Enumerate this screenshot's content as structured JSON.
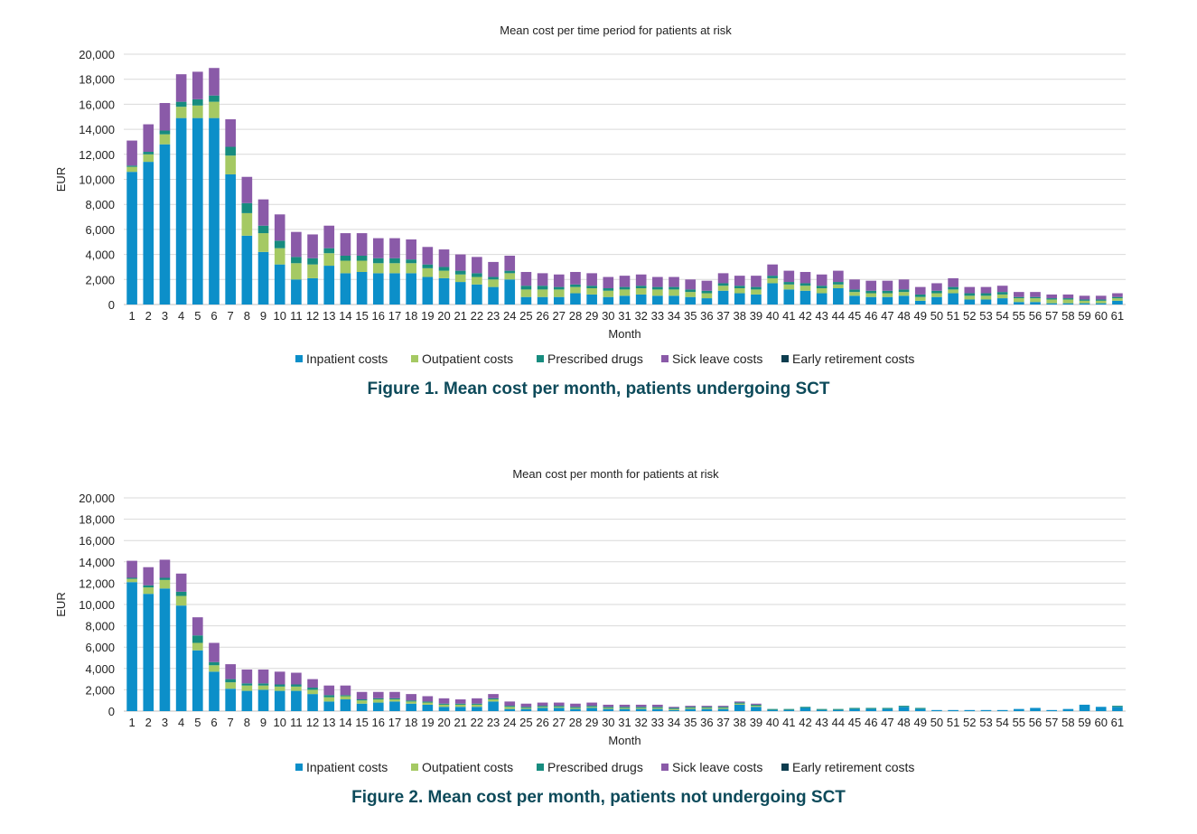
{
  "chart_data": [
    {
      "type": "bar",
      "stacked": true,
      "title": "Mean cost per time period for patients at risk",
      "xlabel": "Month",
      "ylabel": "EUR",
      "ylim": [
        0,
        20000
      ],
      "yticks": [
        0,
        2000,
        4000,
        6000,
        8000,
        10000,
        12000,
        14000,
        16000,
        18000,
        20000
      ],
      "ytick_labels": [
        "0",
        "2,000",
        "4,000",
        "6,000",
        "8,000",
        "10,000",
        "12,000",
        "14,000",
        "16,000",
        "18,000",
        "20,000"
      ],
      "grid": true,
      "legend": "bottom",
      "categories": [
        "1",
        "2",
        "3",
        "4",
        "5",
        "6",
        "7",
        "8",
        "9",
        "10",
        "11",
        "12",
        "13",
        "14",
        "15",
        "16",
        "17",
        "18",
        "19",
        "20",
        "21",
        "22",
        "23",
        "24",
        "25",
        "26",
        "27",
        "28",
        "29",
        "30",
        "31",
        "32",
        "33",
        "34",
        "35",
        "36",
        "37",
        "38",
        "39",
        "40",
        "41",
        "42",
        "43",
        "44",
        "45",
        "46",
        "47",
        "48",
        "49",
        "50",
        "51",
        "52",
        "53",
        "54",
        "55",
        "56",
        "57",
        "58",
        "59",
        "60",
        "61"
      ],
      "series": [
        {
          "name": "Inpatient costs",
          "color": "#0c8fc9",
          "values": [
            10600,
            11400,
            12800,
            14900,
            14900,
            14900,
            10400,
            5500,
            4200,
            3200,
            2000,
            2100,
            3100,
            2500,
            2600,
            2500,
            2500,
            2500,
            2200,
            2100,
            1800,
            1600,
            1400,
            2000,
            600,
            600,
            600,
            900,
            800,
            600,
            700,
            800,
            700,
            700,
            600,
            500,
            1100,
            900,
            800,
            1700,
            1200,
            1100,
            900,
            1300,
            700,
            600,
            600,
            700,
            300,
            600,
            900,
            400,
            400,
            500,
            200,
            200,
            100,
            100,
            100,
            100,
            300
          ]
        },
        {
          "name": "Outpatient costs",
          "color": "#a5c963",
          "values": [
            400,
            600,
            800,
            900,
            1000,
            1300,
            1500,
            1800,
            1500,
            1300,
            1300,
            1100,
            1000,
            1000,
            900,
            800,
            800,
            800,
            700,
            600,
            600,
            600,
            600,
            500,
            600,
            600,
            600,
            500,
            500,
            500,
            500,
            500,
            500,
            500,
            400,
            400,
            400,
            400,
            400,
            400,
            400,
            400,
            400,
            300,
            300,
            300,
            300,
            300,
            300,
            300,
            300,
            300,
            300,
            300,
            300,
            300,
            300,
            300,
            200,
            200,
            200
          ]
        },
        {
          "name": "Prescribed drugs",
          "color": "#178c7f",
          "values": [
            100,
            200,
            300,
            400,
            500,
            500,
            700,
            800,
            600,
            600,
            500,
            500,
            400,
            400,
            400,
            400,
            400,
            300,
            300,
            300,
            300,
            300,
            200,
            200,
            300,
            300,
            200,
            200,
            200,
            200,
            200,
            200,
            200,
            200,
            200,
            200,
            200,
            200,
            200,
            200,
            200,
            200,
            200,
            200,
            200,
            200,
            200,
            200,
            200,
            200,
            200,
            200,
            200,
            200,
            100,
            100,
            100,
            100,
            100,
            100,
            100
          ]
        },
        {
          "name": "Sick leave costs",
          "color": "#8a5aa8",
          "values": [
            2000,
            2200,
            2200,
            2200,
            2200,
            2200,
            2200,
            2100,
            2100,
            2100,
            2000,
            1900,
            1800,
            1800,
            1800,
            1600,
            1600,
            1600,
            1400,
            1400,
            1300,
            1300,
            1200,
            1200,
            1100,
            1000,
            1000,
            1000,
            1000,
            900,
            900,
            900,
            800,
            800,
            800,
            800,
            800,
            800,
            900,
            900,
            900,
            900,
            900,
            900,
            800,
            800,
            800,
            800,
            600,
            600,
            700,
            500,
            500,
            500,
            400,
            400,
            300,
            300,
            300,
            300,
            300
          ]
        },
        {
          "name": "Early retirement costs",
          "color": "#0d3d4f",
          "values": [
            0,
            0,
            0,
            0,
            0,
            0,
            0,
            0,
            0,
            0,
            0,
            0,
            0,
            0,
            0,
            0,
            0,
            0,
            0,
            0,
            0,
            0,
            0,
            0,
            0,
            0,
            0,
            0,
            0,
            0,
            0,
            0,
            0,
            0,
            0,
            0,
            0,
            0,
            0,
            0,
            0,
            0,
            0,
            0,
            0,
            0,
            0,
            0,
            0,
            0,
            0,
            0,
            0,
            0,
            0,
            0,
            0,
            0,
            0,
            0,
            0
          ]
        }
      ]
    },
    {
      "type": "bar",
      "stacked": true,
      "title": "Mean cost per month for patients at risk",
      "xlabel": "Month",
      "ylabel": "EUR",
      "ylim": [
        0,
        20000
      ],
      "yticks": [
        0,
        2000,
        4000,
        6000,
        8000,
        10000,
        12000,
        14000,
        16000,
        18000,
        20000
      ],
      "ytick_labels": [
        "0",
        "2,000",
        "4,000",
        "6,000",
        "8,000",
        "10,000",
        "12,000",
        "14,000",
        "16,000",
        "18,000",
        "20,000"
      ],
      "grid": true,
      "legend": "bottom",
      "categories": [
        "1",
        "2",
        "3",
        "4",
        "5",
        "6",
        "7",
        "8",
        "9",
        "10",
        "11",
        "12",
        "13",
        "14",
        "15",
        "16",
        "17",
        "18",
        "19",
        "20",
        "21",
        "22",
        "23",
        "24",
        "25",
        "26",
        "27",
        "28",
        "29",
        "30",
        "31",
        "32",
        "33",
        "34",
        "35",
        "36",
        "37",
        "38",
        "39",
        "40",
        "41",
        "42",
        "43",
        "44",
        "45",
        "46",
        "47",
        "48",
        "49",
        "50",
        "51",
        "52",
        "53",
        "54",
        "55",
        "56",
        "57",
        "58",
        "59",
        "60",
        "61"
      ],
      "series": [
        {
          "name": "Inpatient costs",
          "color": "#0c8fc9",
          "values": [
            12100,
            11000,
            11500,
            9900,
            5700,
            3700,
            2100,
            1900,
            2000,
            1900,
            1900,
            1600,
            900,
            1100,
            700,
            800,
            900,
            700,
            600,
            400,
            400,
            400,
            900,
            200,
            200,
            300,
            300,
            200,
            300,
            200,
            200,
            200,
            200,
            100,
            200,
            200,
            200,
            600,
            400,
            100,
            100,
            300,
            100,
            100,
            200,
            200,
            200,
            400,
            200,
            100,
            100,
            100,
            100,
            100,
            200,
            300,
            100,
            200,
            600,
            400,
            400
          ]
        },
        {
          "name": "Outpatient costs",
          "color": "#a5c963",
          "values": [
            300,
            600,
            800,
            900,
            700,
            600,
            600,
            500,
            400,
            400,
            400,
            400,
            400,
            300,
            300,
            300,
            200,
            200,
            200,
            200,
            200,
            200,
            200,
            200,
            100,
            100,
            100,
            100,
            100,
            100,
            100,
            100,
            100,
            100,
            100,
            100,
            100,
            100,
            100,
            0,
            0,
            0,
            0,
            0,
            0,
            0,
            0,
            0,
            0,
            0,
            0,
            0,
            0,
            0,
            0,
            0,
            0,
            0,
            0,
            0,
            0
          ]
        },
        {
          "name": "Prescribed drugs",
          "color": "#178c7f",
          "values": [
            100,
            200,
            200,
            400,
            700,
            300,
            300,
            200,
            200,
            200,
            200,
            200,
            200,
            100,
            100,
            100,
            100,
            100,
            100,
            100,
            100,
            100,
            100,
            100,
            100,
            100,
            100,
            100,
            100,
            100,
            100,
            100,
            100,
            100,
            100,
            100,
            100,
            100,
            100,
            100,
            100,
            100,
            100,
            100,
            100,
            100,
            100,
            100,
            100,
            0,
            0,
            0,
            0,
            0,
            0,
            0,
            0,
            0,
            0,
            0,
            100
          ]
        },
        {
          "name": "Sick leave costs",
          "color": "#8a5aa8",
          "values": [
            1600,
            1700,
            1700,
            1700,
            1700,
            1800,
            1400,
            1300,
            1300,
            1200,
            1100,
            800,
            900,
            900,
            700,
            600,
            600,
            600,
            500,
            500,
            400,
            500,
            400,
            400,
            300,
            300,
            300,
            300,
            300,
            200,
            200,
            200,
            200,
            100,
            100,
            100,
            100,
            100,
            100,
            0,
            0,
            0,
            0,
            0,
            0,
            0,
            0,
            0,
            0,
            0,
            0,
            0,
            0,
            0,
            0,
            0,
            0,
            0,
            0,
            0,
            0
          ]
        },
        {
          "name": "Early retirement costs",
          "color": "#0d3d4f",
          "values": [
            0,
            0,
            0,
            0,
            0,
            0,
            0,
            0,
            0,
            0,
            0,
            0,
            0,
            0,
            0,
            0,
            0,
            0,
            0,
            0,
            0,
            0,
            0,
            0,
            0,
            0,
            0,
            0,
            0,
            0,
            0,
            0,
            0,
            0,
            0,
            0,
            0,
            0,
            0,
            0,
            0,
            0,
            0,
            0,
            0,
            0,
            0,
            0,
            0,
            0,
            0,
            0,
            0,
            0,
            0,
            0,
            0,
            0,
            0,
            0,
            0
          ]
        }
      ]
    }
  ],
  "captions": {
    "figure1": "Figure 1. Mean cost per month, patients undergoing SCT",
    "figure2": "Figure 2. Mean cost per month, patients not undergoing SCT"
  }
}
